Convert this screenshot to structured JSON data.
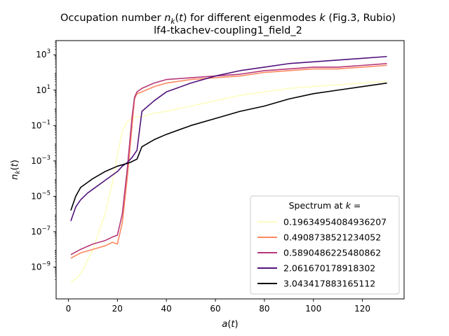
{
  "chart_data": {
    "type": "line",
    "title_line1": "Occupation number n_k(t) for different eigenmodes k (Fig.3, Rubio)",
    "title_line2": "lf4-tkachev-coupling1_field_2",
    "xlabel": "a(t)",
    "ylabel": "n_k(t)",
    "xlim": [
      -5,
      137
    ],
    "ylim_log10": [
      -10.8,
      3.8
    ],
    "yscale": "log",
    "grid": false,
    "x_ticks": [
      0,
      20,
      40,
      60,
      80,
      100,
      120
    ],
    "x_tick_labels": [
      "0",
      "20",
      "40",
      "60",
      "80",
      "100",
      "120"
    ],
    "y_ticks_exp": [
      -9,
      -7,
      -5,
      -3,
      -1,
      1,
      3
    ],
    "y_tick_labels": [
      "10",
      "10",
      "10",
      "10",
      "10",
      "10",
      "10"
    ],
    "y_tick_exponents": [
      "−9",
      "−7",
      "−5",
      "−3",
      "−1",
      "1",
      "3"
    ],
    "legend": {
      "title": "Spectrum at k =",
      "placement": "lower right"
    },
    "series": [
      {
        "name": "0.19634954084936207",
        "color": "#fcfdbf",
        "x": [
          1,
          5,
          10,
          15,
          18,
          20,
          22,
          24,
          26,
          28,
          30,
          35,
          40,
          50,
          60,
          70,
          80,
          90,
          100,
          110,
          120,
          130
        ],
        "log10_y": [
          -9.9,
          -9.4,
          -8.0,
          -6.0,
          -4.2,
          -2.7,
          -1.3,
          -0.8,
          -0.6,
          -0.5,
          -0.5,
          -0.3,
          -0.2,
          0.1,
          0.4,
          0.7,
          0.9,
          1.1,
          1.2,
          1.3,
          1.4,
          1.5
        ]
      },
      {
        "name": "0.4908738521234052",
        "color": "#fc8961",
        "x": [
          1,
          5,
          10,
          15,
          18,
          20,
          22,
          24,
          26,
          27,
          28,
          30,
          35,
          40,
          50,
          60,
          70,
          80,
          90,
          100,
          110,
          120,
          130
        ],
        "log10_y": [
          -8.5,
          -8.2,
          -8.0,
          -7.8,
          -7.6,
          -7.7,
          -6.5,
          -4.0,
          -1.0,
          0.5,
          0.8,
          0.9,
          1.2,
          1.4,
          1.6,
          1.7,
          1.8,
          2.0,
          2.1,
          2.2,
          2.2,
          2.3,
          2.4
        ]
      },
      {
        "name": "0.5890486225480862",
        "color": "#b73779",
        "x": [
          1,
          5,
          10,
          15,
          18,
          20,
          22,
          24,
          26,
          27,
          28,
          30,
          35,
          40,
          50,
          60,
          70,
          80,
          90,
          100,
          110,
          120,
          130
        ],
        "log10_y": [
          -8.3,
          -8.0,
          -7.7,
          -7.5,
          -7.3,
          -7.2,
          -6.0,
          -3.5,
          -0.5,
          0.6,
          0.9,
          1.1,
          1.4,
          1.6,
          1.7,
          1.8,
          1.9,
          2.1,
          2.2,
          2.3,
          2.3,
          2.4,
          2.5
        ]
      },
      {
        "name": "2.061670178918302",
        "color": "#51127c",
        "x": [
          1,
          3,
          5,
          8,
          10,
          15,
          20,
          22,
          24,
          26,
          28,
          30,
          35,
          40,
          50,
          60,
          70,
          80,
          90,
          100,
          110,
          120,
          130
        ],
        "log10_y": [
          -6.4,
          -5.6,
          -5.2,
          -4.8,
          -4.6,
          -4.1,
          -3.6,
          -3.3,
          -3.1,
          -2.8,
          -2.4,
          -0.2,
          0.4,
          0.9,
          1.4,
          1.8,
          2.1,
          2.3,
          2.5,
          2.6,
          2.7,
          2.8,
          2.9
        ]
      },
      {
        "name": "3.043417883165112",
        "color": "#000004",
        "x": [
          1,
          3,
          5,
          10,
          15,
          20,
          25,
          28,
          30,
          35,
          40,
          50,
          60,
          70,
          80,
          90,
          100,
          110,
          120,
          130
        ],
        "log10_y": [
          -5.8,
          -5.0,
          -4.5,
          -4.0,
          -3.6,
          -3.3,
          -3.1,
          -2.9,
          -2.2,
          -1.8,
          -1.5,
          -1.0,
          -0.6,
          -0.2,
          0.1,
          0.5,
          0.8,
          1.0,
          1.2,
          1.4
        ]
      }
    ]
  }
}
